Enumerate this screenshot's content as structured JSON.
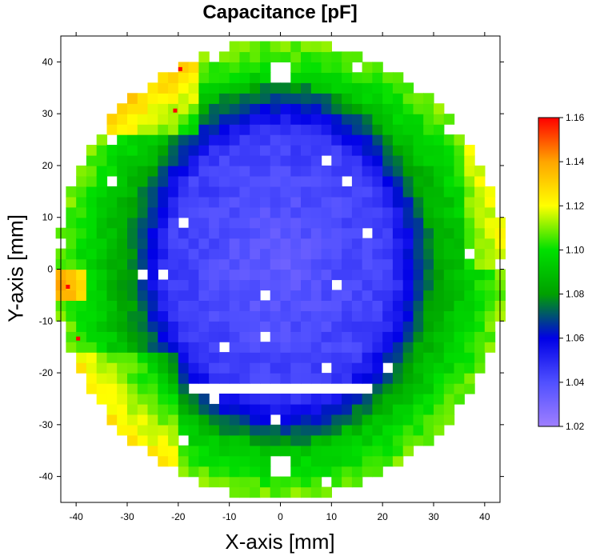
{
  "chart_data": {
    "type": "heatmap",
    "title": "Capacitance [pF]",
    "xlabel": "X-axis [mm]",
    "ylabel": "Y-axis [mm]",
    "xlim": [
      -43,
      43
    ],
    "ylim": [
      -45,
      45
    ],
    "x_ticks": [
      -40,
      -30,
      -20,
      -10,
      0,
      10,
      20,
      30,
      40
    ],
    "y_ticks": [
      40,
      30,
      20,
      10,
      0,
      -10,
      -20,
      -30,
      -40
    ],
    "grid": false,
    "colorbar": {
      "min": 1.02,
      "max": 1.16,
      "ticks": [
        "1.16",
        "1.14",
        "1.12",
        "1.10",
        "1.08",
        "1.06",
        "1.04",
        "1.02"
      ],
      "colors": [
        "#9f7fff",
        "#5050ff",
        "#0000e6",
        "#00a000",
        "#00e000",
        "#ffff00",
        "#ffa500",
        "#ff0000"
      ]
    },
    "field": {
      "shape": "circular wafer map",
      "radius_mm": 44,
      "center_value": 1.035,
      "mid_ring_value": 1.08,
      "edge_value": 1.11,
      "max_value": 1.16
    }
  }
}
